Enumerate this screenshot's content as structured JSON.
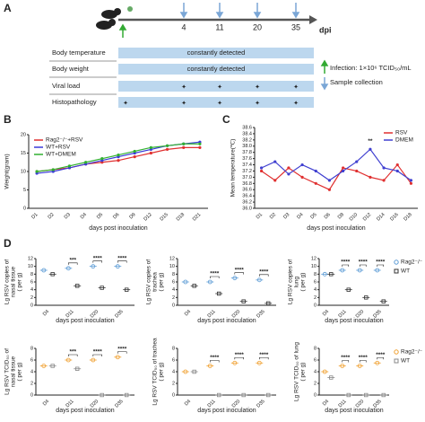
{
  "panel_labels": [
    "A",
    "B",
    "C",
    "D"
  ],
  "timeline": {
    "days": [
      "4",
      "11",
      "20",
      "35"
    ],
    "unit": "dpi",
    "rows": [
      "Body temperature",
      "Body weight",
      "Viral load",
      "Histopathology"
    ],
    "row_notes": [
      "constantly detected",
      "constantly detected"
    ],
    "legend": [
      "Infection: 1×10⁶ TCID₅₀/mL",
      "Sample collection"
    ]
  },
  "chart_data": [
    {
      "type": "line",
      "categories": [
        "D1",
        "D2",
        "D3",
        "D4",
        "D5",
        "D6",
        "D9",
        "D12",
        "D15",
        "D18",
        "D21"
      ],
      "ylim": [
        0,
        20
      ],
      "yticks": [
        0,
        5,
        10,
        15,
        20
      ],
      "ylabel": [
        "Weight(gram)"
      ],
      "xlabel": "days post inoculation",
      "legend": "top-left",
      "series": [
        {
          "name": "Rag2⁻/⁻+RSV",
          "color": "#e03030",
          "values": [
            10,
            10.5,
            11,
            12,
            12.5,
            13,
            14,
            15,
            16,
            16.5,
            16.5
          ]
        },
        {
          "name": "WT+RSV",
          "color": "#3a3ad8",
          "values": [
            9.5,
            10,
            11,
            12,
            13,
            14,
            15,
            16,
            17,
            17.5,
            18
          ]
        },
        {
          "name": "WT+DMEM",
          "color": "#30b030",
          "values": [
            10,
            10.5,
            11.5,
            12.5,
            13.5,
            14.5,
            15.5,
            16.5,
            17,
            17.5,
            17.5
          ]
        }
      ]
    },
    {
      "type": "line",
      "categories": [
        "D1",
        "D2",
        "D3",
        "D4",
        "D5",
        "D6",
        "D8",
        "D10",
        "D12",
        "D14",
        "D16",
        "D18"
      ],
      "ylim": [
        36,
        38.6
      ],
      "yticks": [
        {
          "value": 36,
          "label": "36.0"
        },
        36.2,
        36.4,
        36.6,
        36.8,
        {
          "value": 37,
          "label": "37.0"
        },
        37.2,
        37.4,
        37.6,
        37.8,
        {
          "value": 38,
          "label": "38.0"
        },
        38.2,
        38.4,
        38.6
      ],
      "ylabel": [
        "Mean temperature(℃)"
      ],
      "xlabel": "days post inoculation",
      "legend": "top-right",
      "annotations": [
        {
          "text": "**",
          "category": "D12"
        }
      ],
      "series": [
        {
          "name": "RSV",
          "color": "#e03030",
          "values": [
            37.2,
            36.9,
            37.3,
            37,
            36.8,
            36.6,
            37.3,
            37.2,
            37,
            36.9,
            37.4,
            36.8
          ]
        },
        {
          "name": "DMEM",
          "color": "#4040d0",
          "values": [
            37.3,
            37.5,
            37.1,
            37.4,
            37.2,
            36.9,
            37.2,
            37.5,
            37.9,
            37.3,
            37.2,
            36.9
          ]
        }
      ]
    },
    {
      "type": "dot",
      "categories": [
        "D4",
        "D11",
        "D20",
        "D35"
      ],
      "ylim": [
        0,
        12
      ],
      "yticks": [
        0,
        2,
        4,
        6,
        8,
        10,
        12
      ],
      "ylabel": [
        "Lg RSV copies of",
        "nasal tissue",
        "( per g)"
      ],
      "xlabel": "days post inoculation",
      "annotations": [
        {
          "text": "***",
          "category": "D11"
        },
        {
          "text": "****",
          "category": "D20"
        },
        {
          "text": "****",
          "category": "D35"
        }
      ],
      "series": [
        {
          "name": "Rag2⁻/⁻",
          "color": "#5b9bd5",
          "values": [
            9,
            9.5,
            10,
            10
          ]
        },
        {
          "name": "WT",
          "color": "#333333",
          "values": [
            8,
            5,
            4.5,
            4
          ]
        }
      ]
    },
    {
      "type": "dot",
      "categories": [
        "D4",
        "D11",
        "D20",
        "D35"
      ],
      "ylim": [
        0,
        12
      ],
      "yticks": [
        0,
        2,
        4,
        6,
        8,
        10,
        12
      ],
      "ylabel": [
        "Lg RSV copies of",
        "trachea",
        "( per g)"
      ],
      "xlabel": "days post inoculation",
      "annotations": [
        {
          "text": "****",
          "category": "D11"
        },
        {
          "text": "****",
          "category": "D20"
        },
        {
          "text": "****",
          "category": "D35"
        }
      ],
      "series": [
        {
          "name": "Rag2⁻/⁻",
          "color": "#5b9bd5",
          "values": [
            6,
            6,
            7,
            6.5
          ]
        },
        {
          "name": "WT",
          "color": "#333333",
          "values": [
            5,
            3,
            1,
            0.5
          ]
        }
      ]
    },
    {
      "type": "dot",
      "categories": [
        "D4",
        "D11",
        "D20",
        "D35"
      ],
      "ylim": [
        0,
        12
      ],
      "yticks": [
        0,
        2,
        4,
        6,
        8,
        10,
        12
      ],
      "ylabel": [
        "Lg RSV copies of",
        "lung",
        "( per g)"
      ],
      "xlabel": "days post inoculation",
      "legend": "right",
      "annotations": [
        {
          "text": "****",
          "category": "D11"
        },
        {
          "text": "****",
          "category": "D20"
        },
        {
          "text": "****",
          "category": "D35"
        }
      ],
      "series": [
        {
          "name": "Rag2⁻/⁻",
          "color": "#5b9bd5",
          "values": [
            8,
            9,
            9,
            9
          ]
        },
        {
          "name": "WT",
          "color": "#333333",
          "values": [
            8,
            4,
            2,
            1
          ]
        }
      ]
    },
    {
      "type": "dot",
      "categories": [
        "D4",
        "D11",
        "D20",
        "D35"
      ],
      "ylim": [
        0,
        8
      ],
      "yticks": [
        0,
        2,
        4,
        6,
        8
      ],
      "ylabel": [
        "Lg RSV TCID₅₀ of",
        "nasal tissue",
        "( per g)"
      ],
      "xlabel": "days post inoculation",
      "annotations": [
        {
          "text": "***",
          "category": "D11"
        },
        {
          "text": "****",
          "category": "D20"
        },
        {
          "text": "****",
          "category": "D35"
        }
      ],
      "series": [
        {
          "name": "Rag2⁻/⁻",
          "color": "#f0a030",
          "values": [
            5,
            6,
            6,
            6.5
          ]
        },
        {
          "name": "WT",
          "color": "#888888",
          "values": [
            5,
            4.5,
            0,
            0
          ]
        }
      ]
    },
    {
      "type": "dot",
      "categories": [
        "D4",
        "D11",
        "D20",
        "D35"
      ],
      "ylim": [
        0,
        8
      ],
      "yticks": [
        0,
        2,
        4,
        6,
        8
      ],
      "ylabel": [
        "Lg RSV TCID₅₀ of trachea",
        "( per g)"
      ],
      "xlabel": "days post inoculation",
      "annotations": [
        {
          "text": "****",
          "category": "D11"
        },
        {
          "text": "****",
          "category": "D20"
        },
        {
          "text": "****",
          "category": "D35"
        }
      ],
      "series": [
        {
          "name": "Rag2⁻/⁻",
          "color": "#f0a030",
          "values": [
            4,
            5,
            5.5,
            5.5
          ]
        },
        {
          "name": "WT",
          "color": "#888888",
          "values": [
            4,
            0,
            0,
            0
          ]
        }
      ]
    },
    {
      "type": "dot",
      "categories": [
        "D4",
        "D11",
        "D20",
        "D35"
      ],
      "ylim": [
        0,
        8
      ],
      "yticks": [
        0,
        2,
        4,
        6,
        8
      ],
      "ylabel": [
        "Lg RSV TCID₅₀ of lung",
        "( per g)"
      ],
      "xlabel": "days post inoculation",
      "legend": "right",
      "annotations": [
        {
          "text": "****",
          "category": "D11"
        },
        {
          "text": "****",
          "category": "D20"
        },
        {
          "text": "****",
          "category": "D35"
        }
      ],
      "series": [
        {
          "name": "Rag2⁻/⁻",
          "color": "#f0a030",
          "values": [
            4,
            5,
            5,
            5.5
          ]
        },
        {
          "name": "WT",
          "color": "#888888",
          "values": [
            3,
            0,
            0,
            0
          ]
        }
      ]
    }
  ]
}
